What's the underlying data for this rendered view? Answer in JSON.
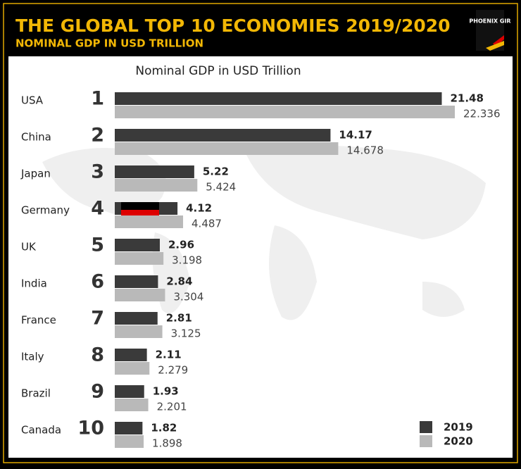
{
  "chart_data": {
    "type": "bar",
    "orientation": "horizontal",
    "header_title": "THE GLOBAL TOP 10 ECONOMIES 2019/2020",
    "header_subtitle": "NOMINAL GDP IN USD TRILLION",
    "logo": "PHOENIX GIR",
    "title": "Nominal GDP in USD Trillion",
    "categories": [
      "USA",
      "China",
      "Japan",
      "Germany",
      "UK",
      "India",
      "France",
      "Italy",
      "Brazil",
      "Canada"
    ],
    "ranks": [
      1,
      2,
      3,
      4,
      5,
      6,
      7,
      8,
      9,
      10
    ],
    "series": [
      {
        "name": "2019",
        "color": "#3a3a3a",
        "values": [
          21.48,
          14.17,
          5.22,
          4.12,
          2.96,
          2.84,
          2.81,
          2.11,
          1.93,
          1.82
        ]
      },
      {
        "name": "2020",
        "color": "#b9b9b9",
        "values": [
          22.336,
          14.678,
          5.424,
          4.487,
          3.198,
          3.304,
          3.125,
          2.279,
          2.201,
          1.898
        ]
      }
    ],
    "legend": "bottom-right"
  }
}
